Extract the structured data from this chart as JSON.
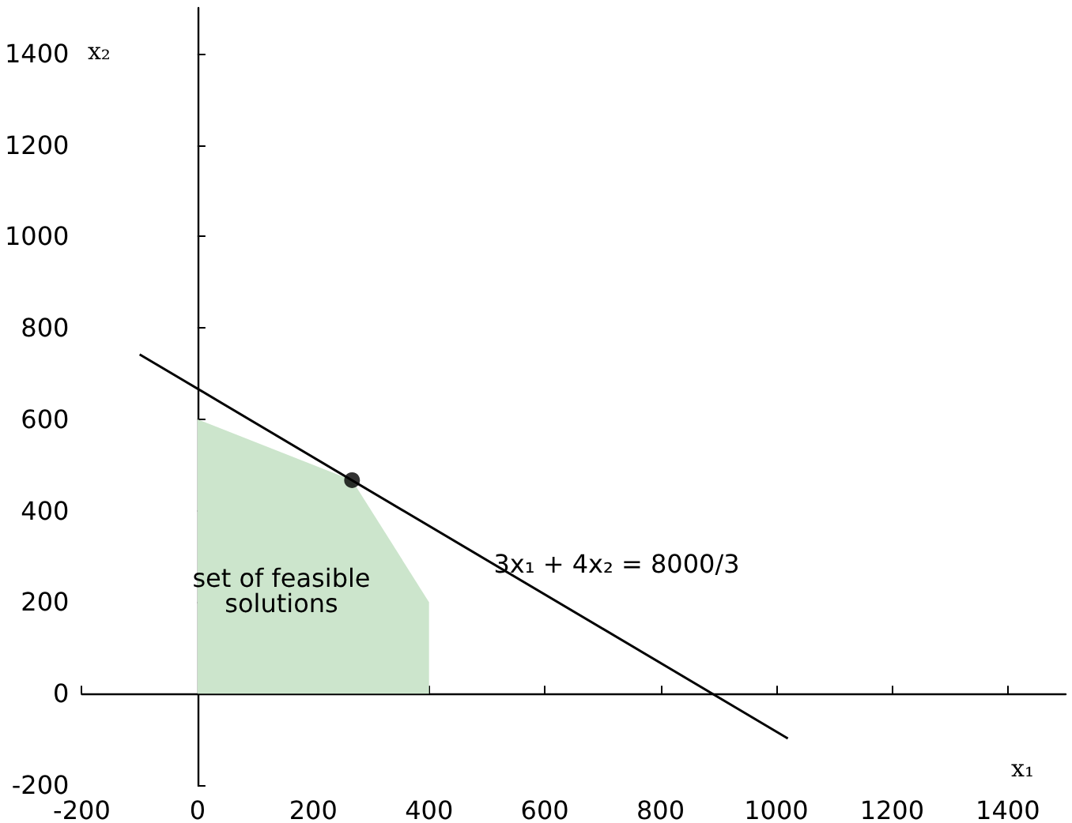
{
  "chart_data": {
    "type": "line",
    "xlabel": "x₁",
    "ylabel": "x₂",
    "xlim": [
      -200,
      1500
    ],
    "ylim": [
      -200,
      1500
    ],
    "xticks": [
      -200,
      0,
      200,
      400,
      600,
      800,
      1000,
      1200,
      1400
    ],
    "yticks": [
      -200,
      0,
      200,
      400,
      600,
      800,
      1000,
      1200,
      1400
    ],
    "series": [
      {
        "type": "area",
        "color": "#cce5cc",
        "x": [
          0,
          0,
          267,
          400,
          400
        ],
        "values": [
          0,
          600,
          467,
          200,
          0
        ]
      },
      {
        "color": "#000000",
        "x": [
          -100,
          1020
        ],
        "values": [
          742,
          -98
        ]
      },
      {
        "type": "scatter",
        "color": "#000000",
        "marker": "circle",
        "x": [
          267
        ],
        "values": [
          467
        ]
      }
    ],
    "annotations": [
      "3x₁ + 4x₂ = 8000/3",
      "set of feasible\nsolutions"
    ]
  }
}
